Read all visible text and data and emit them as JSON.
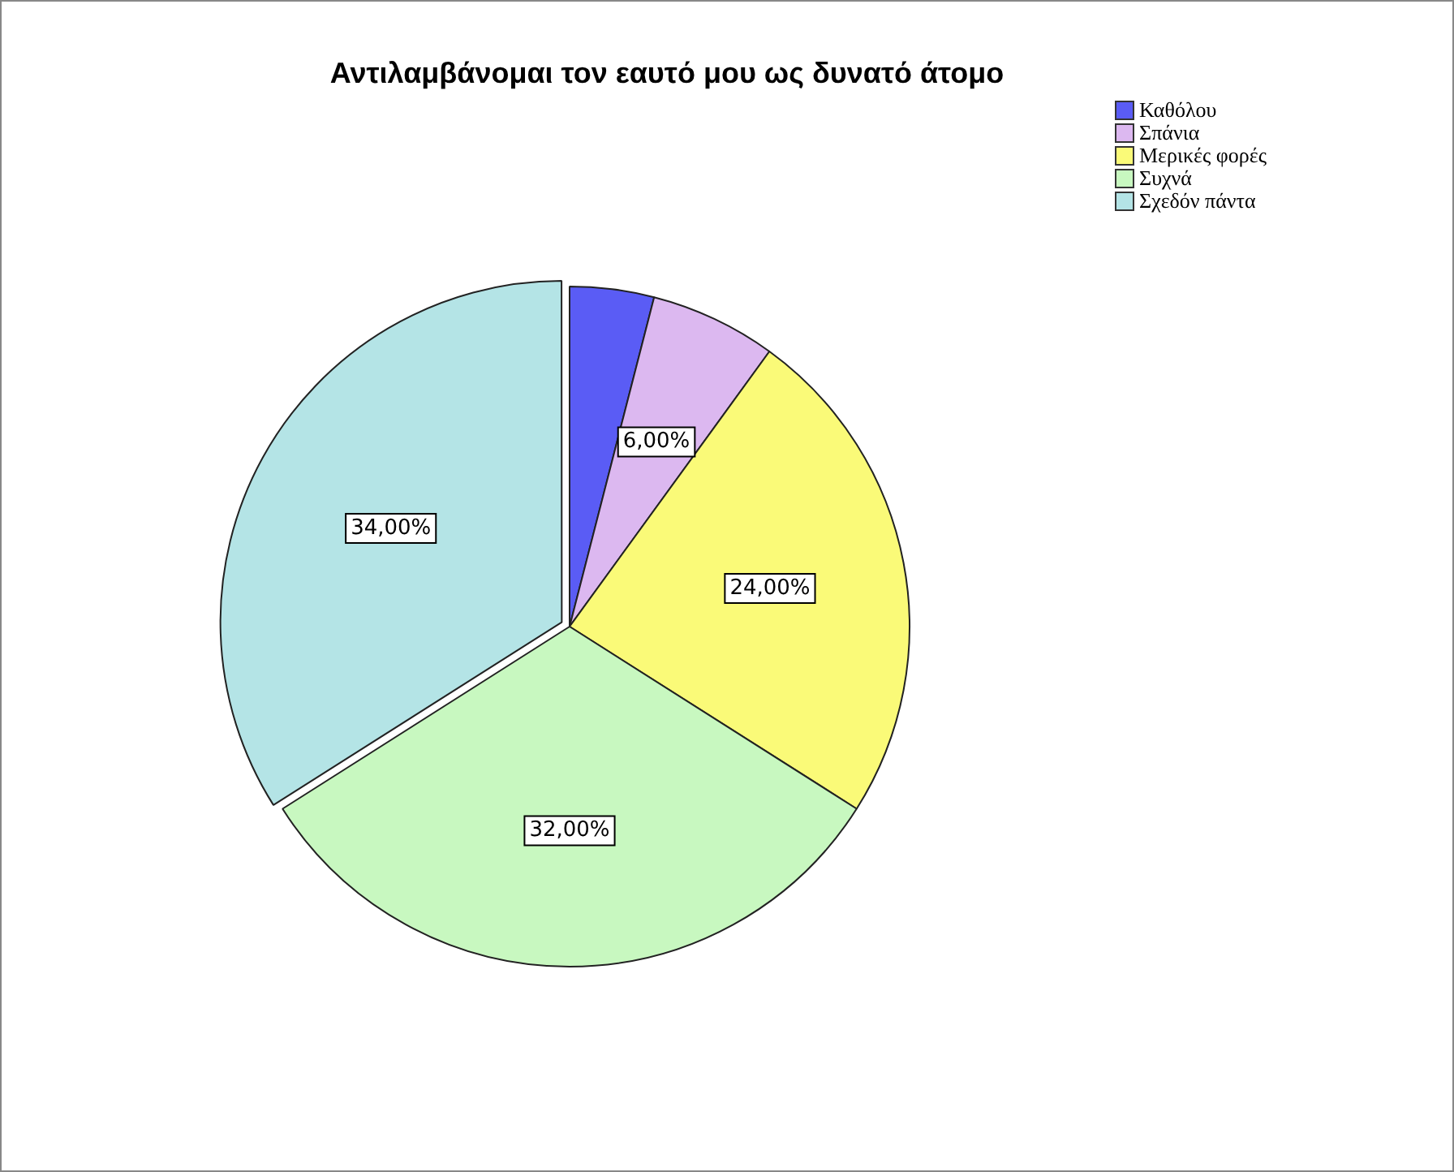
{
  "chart_data": {
    "type": "pie",
    "title": "Αντιλαμβάνομαι τον εαυτό μου ως δυνατό άτομο",
    "categories": [
      "Καθόλου",
      "Σπάνια",
      "Μερικές φορές",
      "Συχνά",
      "Σχεδόν πάντα"
    ],
    "values": [
      4,
      6,
      24,
      32,
      34
    ],
    "colors": [
      "#5a5cf5",
      "#dcb8f0",
      "#fafa78",
      "#c8f8c0",
      "#b4e4e6"
    ],
    "value_labels": [
      null,
      "6,00%",
      "24,00%",
      "32,00%",
      "34,00%"
    ],
    "legend": "top right"
  }
}
